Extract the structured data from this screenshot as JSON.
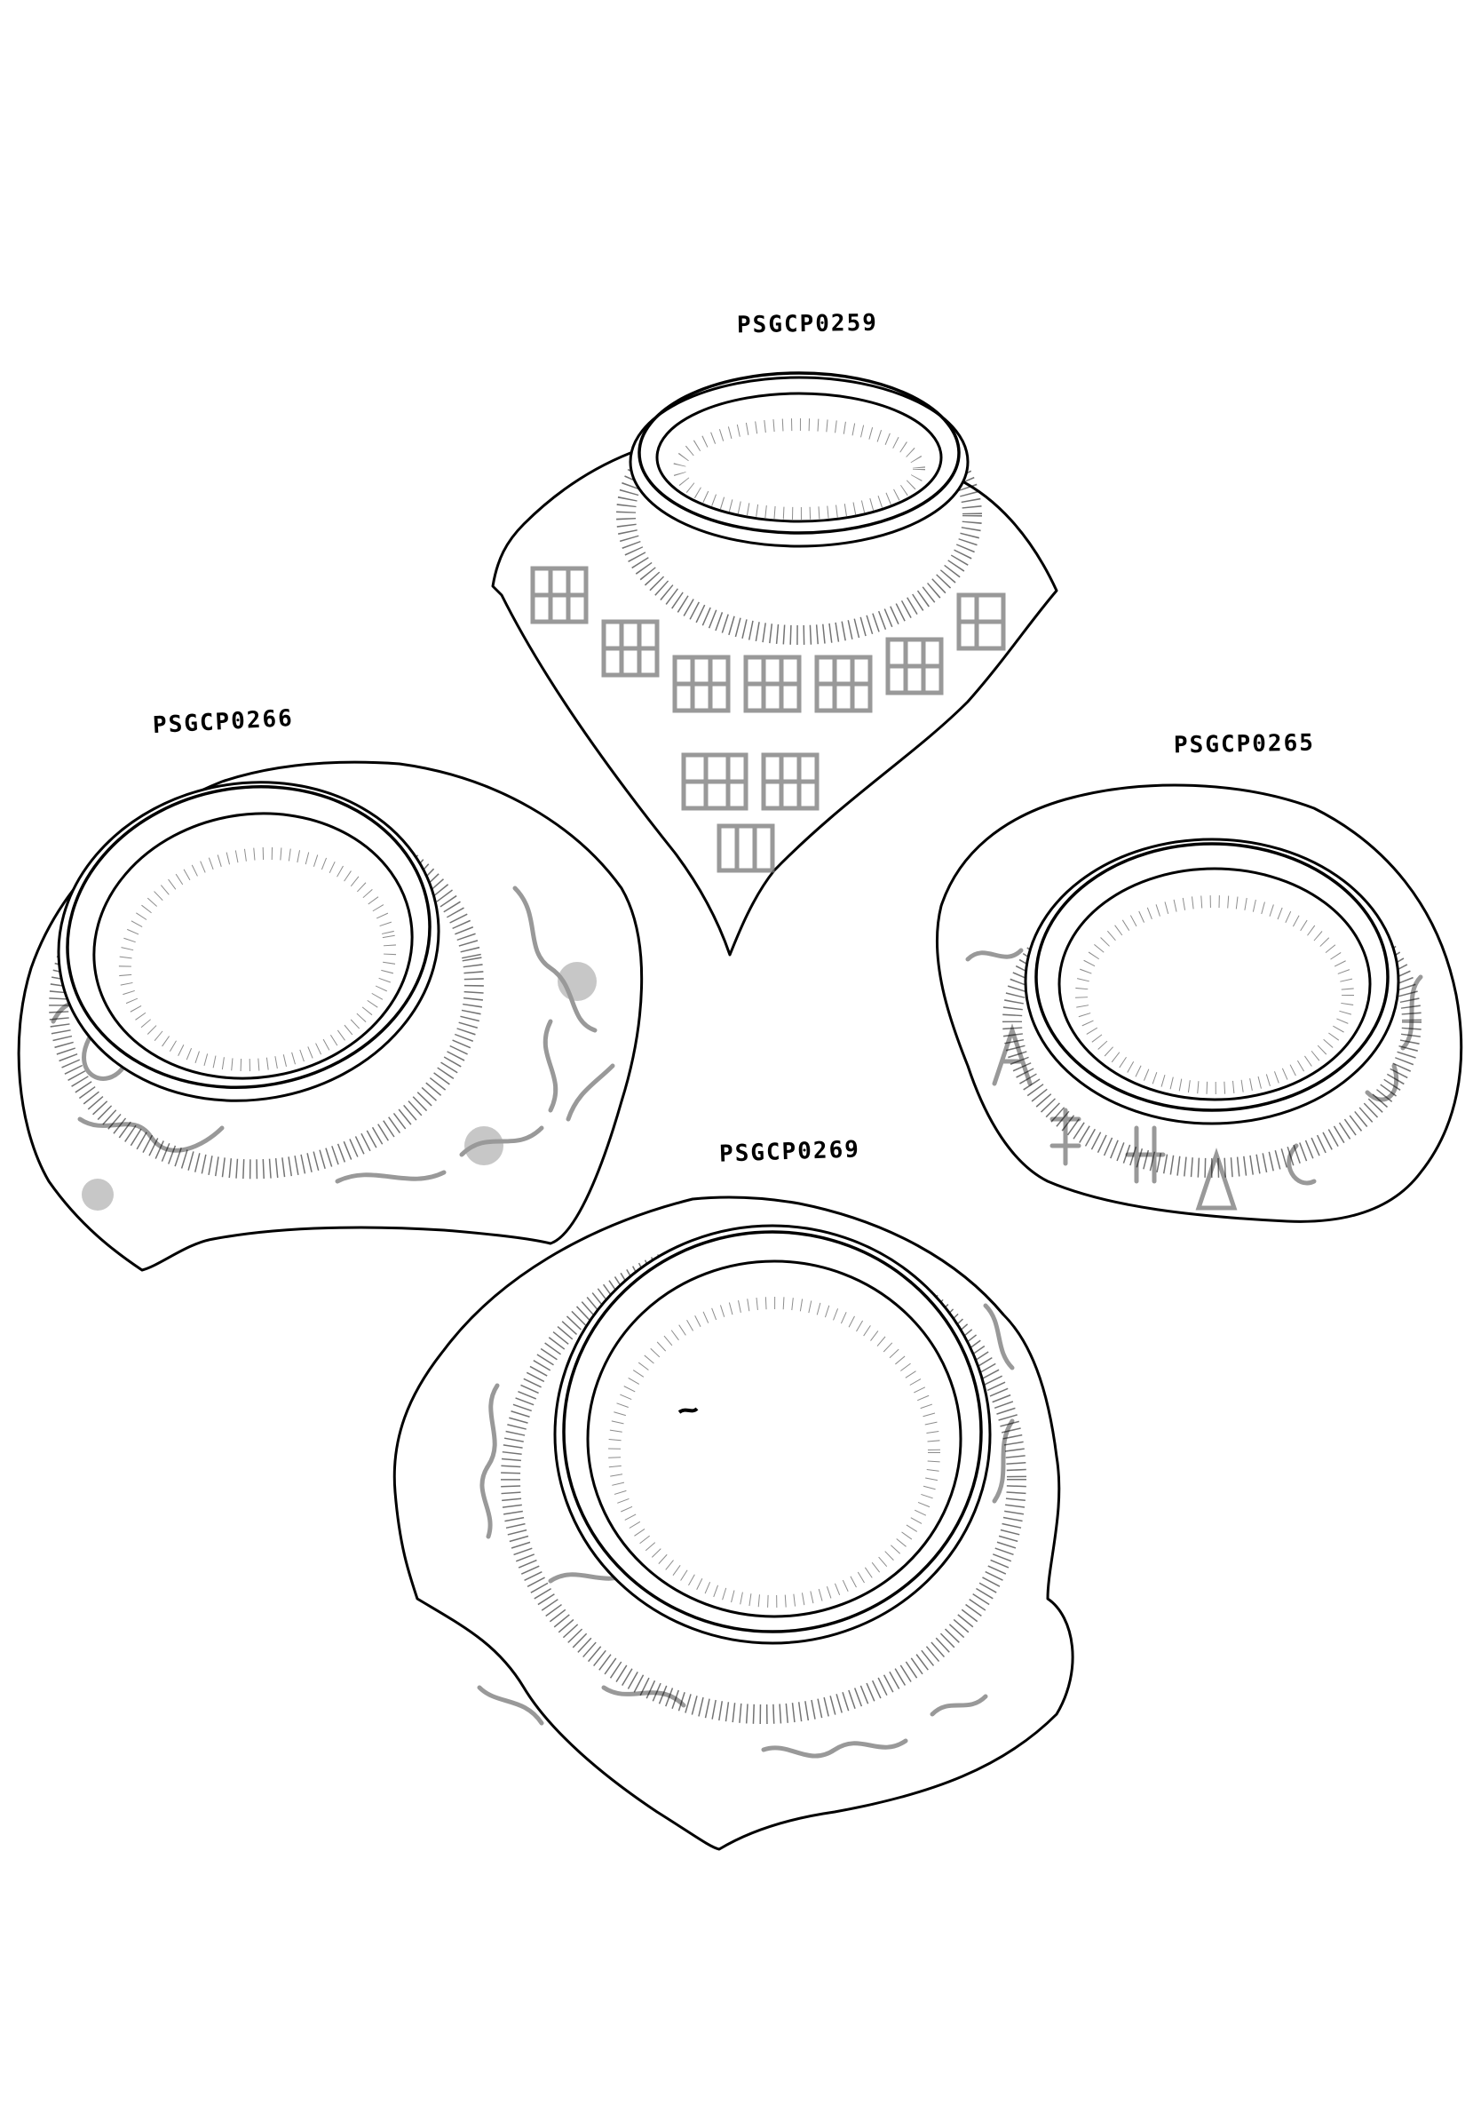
{
  "labels": {
    "sherd_top": "PSGCP0259",
    "sherd_left": "PSGCP0266",
    "sherd_right": "PSGCP0265",
    "sherd_bottom": "PSGCP0269"
  },
  "colors": {
    "line": "#000000",
    "background": "#ffffff",
    "shading": "#999999"
  }
}
